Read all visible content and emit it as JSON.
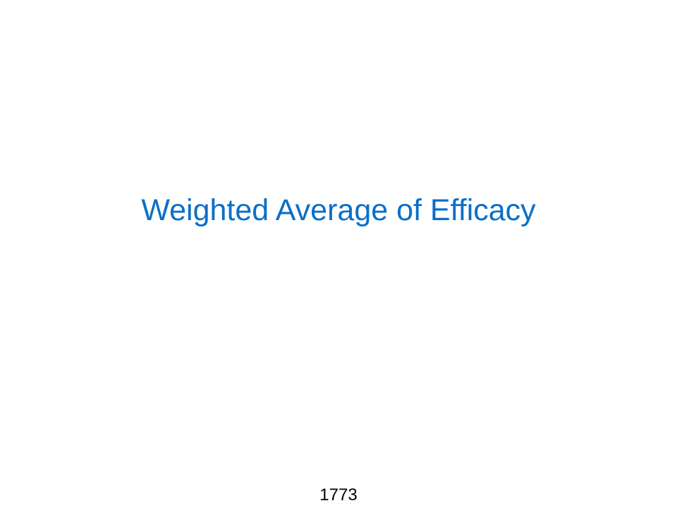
{
  "slide": {
    "title": "Weighted Average of Efficacy",
    "page_number": "1773"
  },
  "colors": {
    "title": "#0a6fc8",
    "background": "#ffffff",
    "page_number": "#000000"
  }
}
